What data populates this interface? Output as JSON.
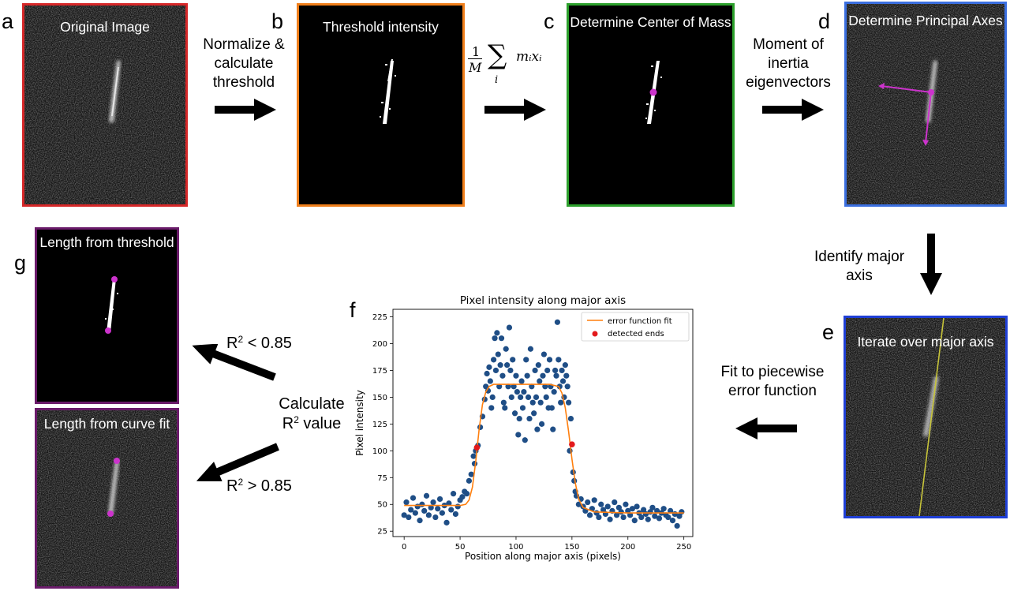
{
  "panels": {
    "a": {
      "letter": "a",
      "title": "Original Image"
    },
    "b": {
      "letter": "b",
      "title": "Threshold intensity"
    },
    "c": {
      "letter": "c",
      "title": "Determine Center of Mass"
    },
    "d": {
      "letter": "d",
      "title": "Determine Principal Axes"
    },
    "e": {
      "letter": "e",
      "title": "Iterate over major axis"
    },
    "f": {
      "letter": "f"
    },
    "g": {
      "letter": "g",
      "title_threshold": "Length from threshold",
      "title_curve": "Length from curve fit"
    }
  },
  "steps": {
    "a_to_b": "Normalize & calculate threshold",
    "formula_frac_num": "1",
    "formula_frac_den": "M",
    "formula_sum": "∑",
    "formula_sub": "i",
    "formula_terms": "mᵢxᵢ",
    "c_to_d": "Moment of inertia eigenvectors",
    "d_to_e": "Identify major axis",
    "e_to_f": "Fit to piecewise error function",
    "calc_line1": "Calculate",
    "calc_r": "R",
    "calc_sup": "2",
    "calc_line2_rest": " value",
    "r2_low_r": "R",
    "r2_low_sup": "2",
    "r2_low_rest": " < 0.85",
    "r2_high_r": "R",
    "r2_high_sup": "2",
    "r2_high_rest": " > 0.85"
  },
  "colors": {
    "panel_a": "#d62728",
    "panel_b": "#f07f1b",
    "panel_c": "#2ca02c",
    "panel_d": "#3b6fe0",
    "panel_e": "#1f3fd6",
    "panel_g": "#6a1b6a",
    "magenta": "#cc33cc",
    "scatter": "#1f4e86",
    "fit": "#ff7f0e",
    "ends": "#e31a1c",
    "axis_line": "#c7c43a"
  },
  "chart_data": {
    "type": "scatter",
    "title": "Pixel intensity along major axis",
    "xlabel": "Position along major axis (pixels)",
    "ylabel": "Pixel intensity",
    "xlim": [
      -10,
      258
    ],
    "ylim": [
      20,
      232
    ],
    "xticks": [
      0,
      50,
      100,
      150,
      200,
      250
    ],
    "yticks": [
      25,
      50,
      75,
      100,
      125,
      150,
      175,
      200,
      225
    ],
    "legend": {
      "placement": "top-right",
      "entries": [
        "error function fit",
        "detected ends"
      ]
    },
    "series": [
      {
        "name": "error function fit",
        "kind": "line",
        "x": [
          0,
          50,
          55,
          58,
          61,
          64,
          67,
          70,
          73,
          76,
          80,
          90,
          110,
          130,
          138,
          141,
          144,
          147,
          150,
          153,
          156,
          160,
          170,
          200,
          250
        ],
        "y": [
          49,
          49,
          50,
          54,
          66,
          90,
          120,
          143,
          155,
          160,
          162,
          162,
          162,
          162,
          160,
          154,
          140,
          118,
          92,
          70,
          55,
          47,
          43,
          42,
          42
        ]
      },
      {
        "name": "detected ends",
        "kind": "points",
        "x": [
          65,
          150
        ],
        "y": [
          103,
          106
        ]
      },
      {
        "name": "",
        "kind": "points",
        "x": [
          0,
          2,
          4,
          6,
          8,
          10,
          12,
          14,
          16,
          18,
          20,
          22,
          24,
          26,
          28,
          30,
          32,
          34,
          36,
          38,
          40,
          42,
          44,
          46,
          48,
          50,
          52,
          54,
          56,
          58,
          60,
          62,
          63,
          64,
          66,
          68,
          70,
          72,
          73,
          74,
          75,
          76,
          77,
          78,
          79,
          80,
          81,
          82,
          83,
          84,
          85,
          86,
          87,
          88,
          89,
          90,
          91,
          92,
          93,
          94,
          95,
          96,
          97,
          98,
          99,
          100,
          101,
          102,
          103,
          104,
          105,
          106,
          107,
          108,
          109,
          110,
          111,
          112,
          113,
          114,
          115,
          116,
          117,
          118,
          119,
          120,
          121,
          122,
          123,
          124,
          125,
          126,
          127,
          128,
          129,
          130,
          131,
          132,
          133,
          134,
          135,
          136,
          137,
          138,
          139,
          140,
          141,
          142,
          143,
          144,
          145,
          146,
          147,
          148,
          149,
          151,
          152,
          153,
          154,
          156,
          158,
          160,
          162,
          164,
          166,
          168,
          170,
          172,
          174,
          176,
          178,
          180,
          182,
          184,
          186,
          188,
          190,
          192,
          194,
          196,
          198,
          200,
          202,
          204,
          206,
          208,
          210,
          212,
          214,
          216,
          218,
          220,
          222,
          224,
          226,
          228,
          230,
          232,
          234,
          236,
          238,
          240,
          242,
          244,
          246,
          248
        ],
        "y": [
          40,
          52,
          38,
          45,
          56,
          42,
          48,
          35,
          50,
          44,
          58,
          40,
          47,
          52,
          38,
          46,
          55,
          42,
          49,
          33,
          51,
          45,
          60,
          41,
          48,
          54,
          57,
          62,
          60,
          72,
          78,
          95,
          88,
          100,
          105,
          122,
          132,
          148,
          160,
          172,
          156,
          178,
          165,
          140,
          150,
          185,
          205,
          175,
          210,
          190,
          160,
          180,
          205,
          170,
          145,
          140,
          195,
          180,
          160,
          215,
          175,
          150,
          185,
          160,
          135,
          170,
          155,
          115,
          130,
          150,
          165,
          140,
          155,
          110,
          185,
          170,
          150,
          130,
          195,
          160,
          145,
          135,
          175,
          150,
          120,
          180,
          165,
          145,
          125,
          170,
          190,
          160,
          150,
          175,
          140,
          185,
          160,
          140,
          120,
          155,
          175,
          170,
          220,
          185,
          160,
          145,
          175,
          165,
          150,
          180,
          170,
          160,
          145,
          100,
          130,
          80,
          72,
          62,
          58,
          50,
          55,
          48,
          44,
          52,
          40,
          46,
          54,
          42,
          38,
          50,
          45,
          41,
          48,
          36,
          44,
          52,
          40,
          47,
          43,
          38,
          50,
          44,
          40,
          46,
          35,
          48,
          42,
          38,
          45,
          41,
          36,
          43,
          47,
          39,
          44,
          37,
          42,
          46,
          40,
          38,
          44,
          35,
          41,
          30,
          39,
          43
        ]
      }
    ]
  }
}
